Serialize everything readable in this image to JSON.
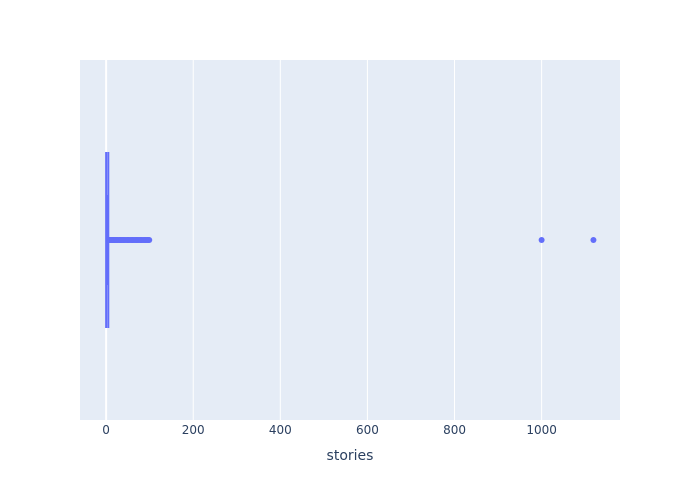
{
  "chart_data": {
    "type": "box",
    "orientation": "horizontal",
    "xlabel": "stories",
    "xlim": [
      -60,
      1180
    ],
    "x_ticks": [
      0,
      200,
      400,
      600,
      800,
      1000
    ],
    "x_tick_labels": [
      "0",
      "200",
      "400",
      "600",
      "800",
      "1000"
    ],
    "grid": true,
    "colors": {
      "plot_bg": "#E5ECF6",
      "grid": "#ffffff",
      "box": "#636EFA",
      "text": "#2a3f5f"
    },
    "box": {
      "whisker_low": 0,
      "q1": 1,
      "median": 2,
      "q3": 3,
      "whisker_high": 5
    },
    "outliers": [
      6,
      7,
      8,
      9,
      10,
      12,
      14,
      15,
      17,
      18,
      20,
      22,
      24,
      25,
      27,
      30,
      32,
      34,
      35,
      38,
      40,
      42,
      45,
      48,
      50,
      52,
      55,
      58,
      60,
      62,
      65,
      68,
      70,
      72,
      75,
      78,
      80,
      82,
      85,
      88,
      90,
      92,
      95,
      97,
      99,
      1000,
      1119
    ]
  }
}
